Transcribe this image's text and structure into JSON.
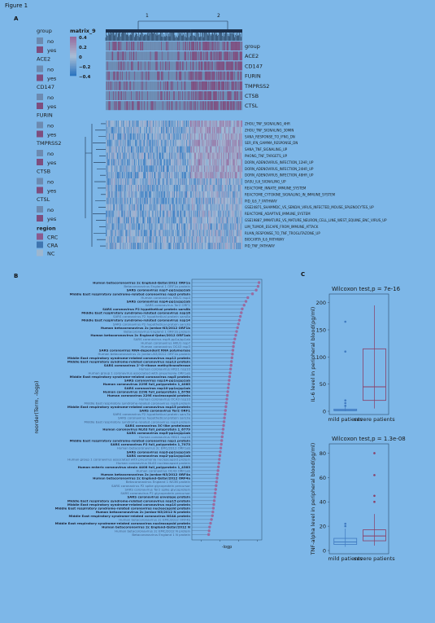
{
  "figure_title": "Figure 1",
  "panels": {
    "a": "A",
    "b": "B",
    "c": "C"
  },
  "heatmap": {
    "scale_title": "matrix_9",
    "scale_ticks": [
      "0.4",
      "0.2",
      "0",
      "−0.2",
      "−0.4"
    ],
    "cluster_labels": [
      "1",
      "2"
    ],
    "annotation_rows": [
      "group",
      "ACE2",
      "CD147",
      "FURIN",
      "TMPRSS2",
      "CTSB",
      "CTSL"
    ],
    "legend_groups": [
      {
        "title": "group",
        "items": [
          "no",
          "yes"
        ]
      },
      {
        "title": "ACE2",
        "items": [
          "no",
          "yes"
        ]
      },
      {
        "title": "CD147",
        "items": [
          "no",
          "yes"
        ]
      },
      {
        "title": "FURIN",
        "items": [
          "no",
          "yes"
        ]
      },
      {
        "title": "TMPRSS2",
        "items": [
          "no",
          "yes"
        ]
      },
      {
        "title": "CTSB",
        "items": [
          "no",
          "yes"
        ]
      },
      {
        "title": "CTSL",
        "items": [
          "no",
          "yes"
        ]
      }
    ],
    "region_legend": {
      "title": "region",
      "items": [
        "CRC",
        "CRA",
        "NC"
      ]
    },
    "pathways": [
      "ZHOU_TNF_SIGNALING_4HR",
      "ZHOU_TNF_SIGNALING_30MIN",
      "SANA_RESPONSE_TO_IFNG_DN",
      "SER_IFN_GAMMA_RESPONSE_DN",
      "SANA_TNF_SIGNALING_UP",
      "PHONG_TNF_TARGETS_UP",
      "DORN_ADENOVIRUS_INFECTION_12HR_UP",
      "DORN_ADENOVIRUS_INFECTION_24HR_UP",
      "DORN_ADENOVIRUS_INFECTION_48HR_UP",
      "DASU_IL6_SIGNALING_UP",
      "REACTOME_INNATE_IMMUNE_SYSTEM",
      "REACTOME_CYTOKINE_SIGNALING_IN_IMMUNE_SYSTEM",
      "PID_IL6_7_PATHWAY",
      "GSE24871_SHAMMDC_VS_SENDAI_VIRUS_INFECTED_MOUSE_SPLENOCYTES_UP",
      "REACTOME_ADAPTIVE_IMMUNE_SYSTEM",
      "GSE19887_IMMATURE_VS_MATURE_NEURON_CELL_LINE_WEST_EQUINE_ENC_VIRUS_UP",
      "LIM_TUMOR_ESCAPE_FROM_IMMUNE_ATTACK",
      "RUAN_RESPONSE_TO_TNF_TROGLITAZONE_UP",
      "BIOCARTA_IL6_PATHWAY",
      "PID_TNF_PATHWAY"
    ]
  },
  "chart_data": [
    {
      "type": "scatter",
      "panel": "B",
      "ylabel": "reorder(Term, -logp)",
      "xlabel": "-logp",
      "terms": [
        "Human betacoronavirus 2c England-Qatar/2012 ORF1a",
        "Betacoronavirus England 1 ORF1a protein",
        "SARS coronavirus nsp7-pp1a/pp1ab",
        "Middle East respiratory syndrome-related coronavirus nsp3 protein",
        "Human coronavirus HKU1 nsp4",
        "SARS coronavirus nsp4-pp1a/pp1ab",
        "SARS coronavirus Tor2 ORF1",
        "SARS coronavirus P2 hypothetical protein sars8b",
        "Middle East respiratory syndrome-related coronavirus nsp16",
        "SARS coronavirus P2 hypothetical protein sars8a",
        "Middle East respiratory syndrome-related coronavirus nsp14",
        "SARS coronavirus P2 hypothetical protein sars3b",
        "Human betacoronavirus 2c Jordan-N3/2012 ORF1b",
        "Betacoronavirus England 1 ORF1b protein",
        "Human betacoronavirus 2c England-Qatar/2012 ORF1ab",
        "SARS coronavirus nsp9-pp1a/pp1ab",
        "Human coronavirus HKU1 nsp7",
        "Human coronavirus OC43 nsp3",
        "SARS coronavirus RNA-dependent RNA polymerase",
        "Human betacoronavirus 2c Jordan-N3/2012 ORF1b protein",
        "Middle East respiratory syndrome-related coronavirus nsp12 protein",
        "Middle East respiratory syndrome-related coronavirus nsp13 protein",
        "SARS coronavirus 2'-O-ribose methyltransferase",
        "Human coronavirus HKU1 nsp10",
        "Human group 1 coronavirus associated with pneumonia ORF1ab",
        "Middle East respiratory syndrome-related coronavirus nsp5 protein",
        "SARS coronavirus nsp14-pp1a/pp1ab",
        "Human coronavirus 229E full_polyprotein 1_4085",
        "SARS coronavirus nsp10-pp1a/pp1ab",
        "Human coronavirus 229E full_polyprotein 1_6758",
        "Human coronavirus 229E nucleocapsid protein",
        "Human coronavirus OC43 nsp10",
        "Middle East respiratory syndrome-related coronavirus nsp6 protein",
        "Middle East respiratory syndrome-related coronavirus nsp15 protein",
        "SARS coronavirus Tor2 ORF1",
        "SARS coronavirus P2 hypothetical protein sars7b",
        "SARS coronavirus hypothetical protein sars3a",
        "Middle East respiratory syndrome-related coronavirus nsp9 protein",
        "SARS coronavirus 3C-like proteinase",
        "Human coronavirus NL63 full_polyprotein 1_6779",
        "SARS coronavirus nsp5-pp1a/pp1ab",
        "Human coronavirus HKU1 nsp16",
        "Middle East respiratory syndrome-related coronavirus nsp1 protein",
        "SARS coronavirus P2 full_polyprotein 1_7073",
        "Human betacoronavirus 2c EMC/2012 ORF1ab",
        "SARS coronavirus nsp3-pp1a/pp1ab",
        "SARS coronavirus nsp2-pp1a/pp1ab",
        "Human group 1 coronavirus associated with pneumonia nucleocapsid protein",
        "Human coronavirus NL63 nucleocapsid protein",
        "Human enteric coronavirus strain 4408 full_polyprotein 1_4383",
        "Human coronavirus OC43 ORF1ab",
        "Human betacoronavirus 2c Jordan-N3/2012 ORF4a",
        "Human betacoronavirus 2c England-Qatar/2012 ORF4a",
        "Betacoronavirus England 1 NS3B protein",
        "SARS coronavirus P2 spike glycoprotein precursor",
        "SARS coronavirus Tor2 spike glycoprotein",
        "SARS coronavirus P2 glycoprotein precursor",
        "SARS coronavirus envelope protein",
        "Middle East respiratory syndrome-related coronavirus nsp15 protein",
        "Middle East respiratory syndrome-related coronavirus nsp10 protein",
        "Middle East respiratory syndrome-related coronavirus nucleocapsid protein",
        "Human betacoronavirus 2c Jordan-N3/2012 N protein",
        "Middle East respiratory syndrome-related coronavirus NS4A protein",
        "Human betacoronavirus 2c EMC/2012 ORF4b",
        "Middle East respiratory syndrome-related coronavirus nucleocapsid protein",
        "Human betacoronavirus 2c England-Qatar/2012 N",
        "Human betacoronavirus 2c EMC/2012 N protein",
        "Betacoronavirus England 1 N protein"
      ],
      "values": [
        14.2,
        14.1,
        13.9,
        13.5,
        13.0,
        12.8,
        12.6,
        12.4,
        12.3,
        12.2,
        12.1,
        12.0,
        11.9,
        11.8,
        11.7,
        11.6,
        11.5,
        11.45,
        11.4,
        11.35,
        11.3,
        11.25,
        11.2,
        11.15,
        11.1,
        11.05,
        11.0,
        10.95,
        10.9,
        10.85,
        10.8,
        10.75,
        10.7,
        10.65,
        10.6,
        10.55,
        10.5,
        10.45,
        10.4,
        10.35,
        10.3,
        10.25,
        10.2,
        10.15,
        10.1,
        10.05,
        10.0,
        9.95,
        9.9,
        9.85,
        9.8,
        9.75,
        9.7,
        9.65,
        9.6,
        9.55,
        9.5,
        9.45,
        9.4,
        9.35,
        9.3,
        9.25,
        9.2,
        9.1,
        9.0,
        8.9,
        8.85,
        8.8
      ],
      "xlim": [
        7,
        14.5
      ]
    },
    {
      "type": "box",
      "panel": "C",
      "title": "Wilcoxon test,p = 7e-16",
      "ylabel": "IL-6 level in peripheral blood(pg/ml)",
      "categories": [
        "mild patients",
        "severe patients"
      ],
      "yticks": [
        0,
        50,
        100,
        150,
        200
      ],
      "ylim": [
        0,
        210
      ],
      "boxes": [
        {
          "q1": 1,
          "median": 2,
          "q3": 4,
          "whisker_low": 0,
          "whisker_high": 8,
          "outliers": [
            10,
            15,
            20,
            110,
            165
          ]
        },
        {
          "q1": 20,
          "median": 45,
          "q3": 115,
          "whisker_low": 5,
          "whisker_high": 195,
          "outliers": []
        }
      ]
    },
    {
      "type": "box",
      "panel": "C",
      "title": "Wilcoxon test,p = 1.3e-08",
      "ylabel": "TNF-alpha level in peripheral blood(pg/ml)",
      "categories": [
        "mild patients",
        "severe patients"
      ],
      "yticks": [
        0,
        20,
        40,
        60,
        80
      ],
      "ylim": [
        0,
        85
      ],
      "boxes": [
        {
          "q1": 5,
          "median": 7,
          "q3": 10,
          "whisker_low": 3,
          "whisker_high": 18,
          "outliers": [
            20,
            22
          ]
        },
        {
          "q1": 8,
          "median": 12,
          "q3": 17,
          "whisker_low": 4,
          "whisker_high": 30,
          "outliers": [
            40,
            45,
            62,
            80
          ]
        }
      ]
    }
  ]
}
